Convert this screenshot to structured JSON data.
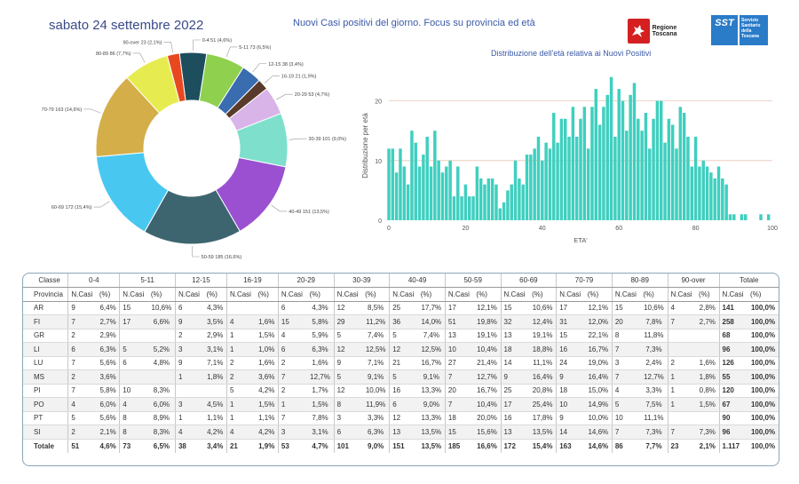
{
  "header": {
    "date": "sabato 24 settembre 2022",
    "title": "Nuovi Casi positivi del giorno. Focus su provincia ed età",
    "logo_rt": "Regione Toscana",
    "logo_sst_short": "SST",
    "logo_sst_text": "Servizio Sanitario della Toscana"
  },
  "chart_data": [
    {
      "type": "pie",
      "variant": "donut",
      "slices": [
        {
          "label": "0-4 51 (4,6%)",
          "value": 51,
          "color": "#1d4e5e"
        },
        {
          "label": "5-11 73 (6,5%)",
          "value": 73,
          "color": "#8fd14f"
        },
        {
          "label": "12-15 38 (3,4%)",
          "value": 38,
          "color": "#3a6cb0"
        },
        {
          "label": "16-19 21 (1,9%)",
          "value": 21,
          "color": "#5a3a2a"
        },
        {
          "label": "20-29 53 (4,7%)",
          "value": 53,
          "color": "#d8b4e8"
        },
        {
          "label": "30-39 101 (9,0%)",
          "value": 101,
          "color": "#7ee0cc"
        },
        {
          "label": "40-49 151 (13,5%)",
          "value": 151,
          "color": "#9a50d0"
        },
        {
          "label": "50-59 185 (16,6%)",
          "value": 185,
          "color": "#3d6570"
        },
        {
          "label": "60-69 172 (15,4%)",
          "value": 172,
          "color": "#48c8f0"
        },
        {
          "label": "70-79 163 (14,6%)",
          "value": 163,
          "color": "#d4ae48"
        },
        {
          "label": "80-89 86 (7,7%)",
          "value": 86,
          "color": "#e6ec50"
        },
        {
          "label": "90-over 23 (2,1%)",
          "value": 23,
          "color": "#e84820"
        }
      ]
    },
    {
      "type": "bar",
      "title": "Distribuzione dell'età relativa ai Nuovi Positivi",
      "xlabel": "ETA'",
      "ylabel": "Distribuzione per età",
      "xlim": [
        0,
        100
      ],
      "ylim": [
        0,
        25
      ],
      "xticks": [
        0,
        20,
        40,
        60,
        80,
        100
      ],
      "yticks": [
        0,
        10,
        20
      ],
      "color": "#3fcfbf",
      "x": [
        0,
        1,
        2,
        3,
        4,
        5,
        6,
        7,
        8,
        9,
        10,
        11,
        12,
        13,
        14,
        15,
        16,
        17,
        18,
        19,
        20,
        21,
        22,
        23,
        24,
        25,
        26,
        27,
        28,
        29,
        30,
        31,
        32,
        33,
        34,
        35,
        36,
        37,
        38,
        39,
        40,
        41,
        42,
        43,
        44,
        45,
        46,
        47,
        48,
        49,
        50,
        51,
        52,
        53,
        54,
        55,
        56,
        57,
        58,
        59,
        60,
        61,
        62,
        63,
        64,
        65,
        66,
        67,
        68,
        69,
        70,
        71,
        72,
        73,
        74,
        75,
        76,
        77,
        78,
        79,
        80,
        81,
        82,
        83,
        84,
        85,
        86,
        87,
        88,
        89,
        90,
        91,
        92,
        93,
        94,
        95,
        96,
        97,
        98,
        99
      ],
      "values": [
        12,
        12,
        8,
        12,
        9,
        6,
        15,
        13,
        9,
        11,
        14,
        9,
        15,
        10,
        8,
        9,
        10,
        4,
        9,
        4,
        6,
        4,
        4,
        9,
        7,
        6,
        7,
        7,
        6,
        2,
        3,
        5,
        6,
        10,
        7,
        6,
        11,
        11,
        12,
        14,
        10,
        13,
        12,
        18,
        13,
        17,
        17,
        14,
        19,
        14,
        17,
        19,
        12,
        19,
        22,
        16,
        19,
        21,
        24,
        14,
        22,
        20,
        15,
        21,
        23,
        17,
        15,
        18,
        12,
        17,
        20,
        20,
        13,
        17,
        16,
        12,
        19,
        18,
        14,
        9,
        14,
        9,
        10,
        9,
        8,
        7,
        9,
        7,
        6,
        1,
        1,
        0,
        1,
        1,
        0,
        0,
        0,
        1,
        0,
        1
      ]
    }
  ],
  "table": {
    "class_label": "Classe",
    "province_label": "Provincia",
    "groups": [
      "0-4",
      "5-11",
      "12-15",
      "16-19",
      "20-29",
      "30-39",
      "40-49",
      "50-59",
      "60-69",
      "70-79",
      "80-89",
      "90-over",
      "Totale"
    ],
    "sub_ncasi": "N.Casi",
    "sub_pct": "(%)",
    "rows": [
      {
        "name": "AR",
        "cells": [
          "9",
          "6,4%",
          "15",
          "10,6%",
          "6",
          "4,3%",
          "",
          "",
          "6",
          "4,3%",
          "12",
          "8,5%",
          "25",
          "17,7%",
          "17",
          "12,1%",
          "15",
          "10,6%",
          "17",
          "12,1%",
          "15",
          "10,6%",
          "4",
          "2,8%",
          "141",
          "100,0%"
        ]
      },
      {
        "name": "FI",
        "cells": [
          "7",
          "2,7%",
          "17",
          "6,6%",
          "9",
          "3,5%",
          "4",
          "1,6%",
          "15",
          "5,8%",
          "29",
          "11,2%",
          "36",
          "14,0%",
          "51",
          "19,8%",
          "32",
          "12,4%",
          "31",
          "12,0%",
          "20",
          "7,8%",
          "7",
          "2,7%",
          "258",
          "100,0%"
        ]
      },
      {
        "name": "GR",
        "cells": [
          "2",
          "2,9%",
          "",
          "",
          "2",
          "2,9%",
          "1",
          "1,5%",
          "4",
          "5,9%",
          "5",
          "7,4%",
          "5",
          "7,4%",
          "13",
          "19,1%",
          "13",
          "19,1%",
          "15",
          "22,1%",
          "8",
          "11,8%",
          "",
          "",
          "68",
          "100,0%"
        ]
      },
      {
        "name": "LI",
        "cells": [
          "6",
          "6,3%",
          "5",
          "5,2%",
          "3",
          "3,1%",
          "1",
          "1,0%",
          "6",
          "6,3%",
          "12",
          "12,5%",
          "12",
          "12,5%",
          "10",
          "10,4%",
          "18",
          "18,8%",
          "16",
          "16,7%",
          "7",
          "7,3%",
          "",
          "",
          "96",
          "100,0%"
        ]
      },
      {
        "name": "LU",
        "cells": [
          "7",
          "5,6%",
          "6",
          "4,8%",
          "9",
          "7,1%",
          "2",
          "1,6%",
          "2",
          "1,6%",
          "9",
          "7,1%",
          "21",
          "16,7%",
          "27",
          "21,4%",
          "14",
          "11,1%",
          "24",
          "19,0%",
          "3",
          "2,4%",
          "2",
          "1,6%",
          "126",
          "100,0%"
        ]
      },
      {
        "name": "MS",
        "cells": [
          "2",
          "3,6%",
          "",
          "",
          "1",
          "1,8%",
          "2",
          "3,6%",
          "7",
          "12,7%",
          "5",
          "9,1%",
          "5",
          "9,1%",
          "7",
          "12,7%",
          "9",
          "16,4%",
          "9",
          "16,4%",
          "7",
          "12,7%",
          "1",
          "1,8%",
          "55",
          "100,0%"
        ]
      },
      {
        "name": "PI",
        "cells": [
          "7",
          "5,8%",
          "10",
          "8,3%",
          "",
          "",
          "5",
          "4,2%",
          "2",
          "1,7%",
          "12",
          "10,0%",
          "16",
          "13,3%",
          "20",
          "16,7%",
          "25",
          "20,8%",
          "18",
          "15,0%",
          "4",
          "3,3%",
          "1",
          "0,8%",
          "120",
          "100,0%"
        ]
      },
      {
        "name": "PO",
        "cells": [
          "4",
          "6,0%",
          "4",
          "6,0%",
          "3",
          "4,5%",
          "1",
          "1,5%",
          "1",
          "1,5%",
          "8",
          "11,9%",
          "6",
          "9,0%",
          "7",
          "10,4%",
          "17",
          "25,4%",
          "10",
          "14,9%",
          "5",
          "7,5%",
          "1",
          "1,5%",
          "67",
          "100,0%"
        ]
      },
      {
        "name": "PT",
        "cells": [
          "5",
          "5,6%",
          "8",
          "8,9%",
          "1",
          "1,1%",
          "1",
          "1,1%",
          "7",
          "7,8%",
          "3",
          "3,3%",
          "12",
          "13,3%",
          "18",
          "20,0%",
          "16",
          "17,8%",
          "9",
          "10,0%",
          "10",
          "11,1%",
          "",
          "",
          "90",
          "100,0%"
        ]
      },
      {
        "name": "SI",
        "cells": [
          "2",
          "2,1%",
          "8",
          "8,3%",
          "4",
          "4,2%",
          "4",
          "4,2%",
          "3",
          "3,1%",
          "6",
          "6,3%",
          "13",
          "13,5%",
          "15",
          "15,6%",
          "13",
          "13,5%",
          "14",
          "14,6%",
          "7",
          "7,3%",
          "7",
          "7,3%",
          "96",
          "100,0%"
        ]
      }
    ],
    "total": {
      "name": "Totale",
      "cells": [
        "51",
        "4,6%",
        "73",
        "6,5%",
        "38",
        "3,4%",
        "21",
        "1,9%",
        "53",
        "4,7%",
        "101",
        "9,0%",
        "151",
        "13,5%",
        "185",
        "16,6%",
        "172",
        "15,4%",
        "163",
        "14,6%",
        "86",
        "7,7%",
        "23",
        "2,1%",
        "1.117",
        "100,0%"
      ]
    }
  }
}
